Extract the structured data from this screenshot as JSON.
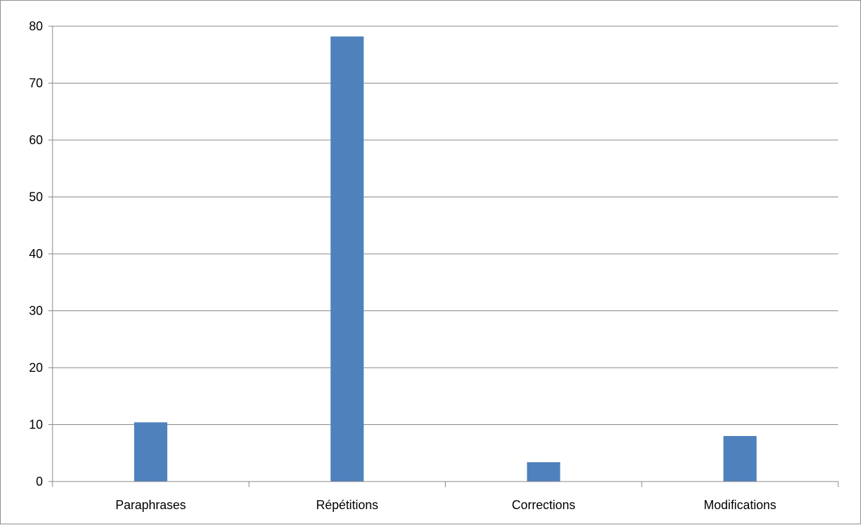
{
  "chart_data": {
    "type": "bar",
    "title": "",
    "xlabel": "",
    "ylabel": "",
    "categories": [
      "Paraphrases",
      "Répétitions",
      "Corrections",
      "Modifications"
    ],
    "values": [
      10.4,
      78.2,
      3.4,
      8.0
    ],
    "ylim": [
      0,
      80
    ],
    "yticks": [
      0,
      10,
      20,
      30,
      40,
      50,
      60,
      70,
      80
    ],
    "grid": true,
    "legend": "none",
    "bar_color": "#4F81BD",
    "grid_color": "#878787"
  }
}
